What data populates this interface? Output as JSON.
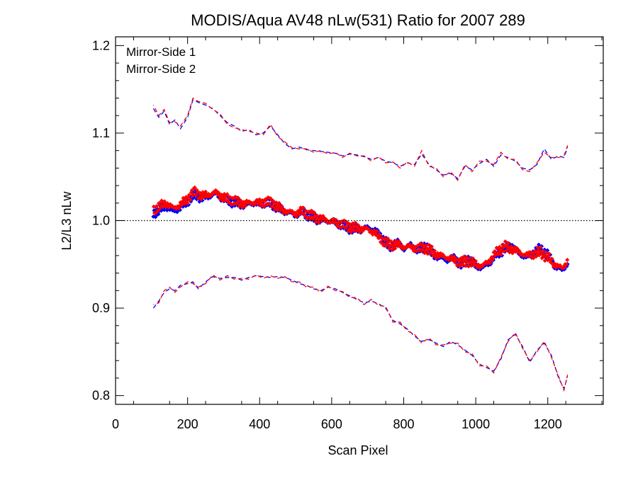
{
  "chart_data": {
    "type": "scatter",
    "title": "MODIS/Aqua AV48 nLw(531) Ratio for 2007 289",
    "xlabel": "Scan Pixel",
    "ylabel": "L2/L3 nLw",
    "xlim": [
      0,
      1354
    ],
    "ylim": [
      0.79,
      1.21
    ],
    "xticks": [
      0,
      200,
      400,
      600,
      800,
      1000,
      1200
    ],
    "xtick_labels": [
      "0",
      "200",
      "400",
      "600",
      "800",
      "1000",
      "1200"
    ],
    "yticks": [
      0.8,
      0.9,
      1.0,
      1.1,
      1.2
    ],
    "ytick_labels": [
      "0.8",
      "0.9",
      "1.0",
      "1.1",
      "1.2"
    ],
    "reference_line": {
      "y": 1.0,
      "style": "dotted"
    },
    "legend": {
      "placement": "top-left",
      "entries": [
        "Mirror-Side 1",
        "Mirror-Side 2"
      ]
    },
    "grid": false,
    "series": [
      {
        "name": "Mirror-Side 1",
        "color": "#0000ff",
        "mean": {
          "x": [
            105,
            120,
            140,
            160,
            180,
            200,
            220,
            240,
            260,
            280,
            300,
            320,
            340,
            360,
            380,
            400,
            420,
            440,
            460,
            480,
            500,
            520,
            540,
            560,
            580,
            600,
            620,
            640,
            660,
            680,
            700,
            720,
            740,
            760,
            780,
            800,
            820,
            840,
            860,
            880,
            900,
            920,
            940,
            960,
            980,
            1000,
            1020,
            1040,
            1060,
            1080,
            1100,
            1120,
            1140,
            1160,
            1180,
            1200,
            1220,
            1240,
            1255
          ],
          "y": [
            1.008,
            1.012,
            1.017,
            1.01,
            1.015,
            1.022,
            1.03,
            1.026,
            1.028,
            1.031,
            1.025,
            1.022,
            1.02,
            1.018,
            1.02,
            1.019,
            1.021,
            1.018,
            1.012,
            1.009,
            1.007,
            1.01,
            1.005,
            1.002,
            1.0,
            0.999,
            0.996,
            0.993,
            0.991,
            0.99,
            0.992,
            0.988,
            0.98,
            0.97,
            0.975,
            0.968,
            0.972,
            0.966,
            0.971,
            0.962,
            0.958,
            0.955,
            0.957,
            0.95,
            0.956,
            0.948,
            0.946,
            0.953,
            0.963,
            0.968,
            0.971,
            0.962,
            0.958,
            0.963,
            0.967,
            0.961,
            0.948,
            0.943,
            0.952
          ]
        },
        "upper": {
          "x": [
            105,
            120,
            135,
            150,
            165,
            180,
            200,
            215,
            230,
            250,
            270,
            290,
            310,
            330,
            350,
            370,
            390,
            410,
            430,
            450,
            470,
            490,
            510,
            530,
            550,
            570,
            590,
            610,
            630,
            650,
            670,
            690,
            710,
            730,
            750,
            770,
            790,
            810,
            830,
            850,
            870,
            890,
            910,
            930,
            950,
            970,
            990,
            1010,
            1030,
            1050,
            1070,
            1090,
            1110,
            1130,
            1150,
            1170,
            1190,
            1210,
            1230,
            1245,
            1255
          ],
          "y": [
            1.128,
            1.118,
            1.125,
            1.11,
            1.115,
            1.105,
            1.118,
            1.138,
            1.135,
            1.132,
            1.128,
            1.12,
            1.112,
            1.108,
            1.102,
            1.104,
            1.098,
            1.1,
            1.108,
            1.098,
            1.088,
            1.082,
            1.084,
            1.081,
            1.08,
            1.079,
            1.078,
            1.077,
            1.074,
            1.076,
            1.075,
            1.073,
            1.07,
            1.072,
            1.068,
            1.066,
            1.062,
            1.066,
            1.064,
            1.076,
            1.064,
            1.058,
            1.052,
            1.054,
            1.048,
            1.062,
            1.058,
            1.065,
            1.07,
            1.062,
            1.075,
            1.072,
            1.068,
            1.06,
            1.058,
            1.064,
            1.082,
            1.07,
            1.074,
            1.072,
            1.084
          ]
        },
        "lower": {
          "x": [
            105,
            120,
            135,
            150,
            165,
            180,
            200,
            215,
            230,
            250,
            270,
            290,
            310,
            330,
            350,
            370,
            390,
            410,
            430,
            450,
            470,
            490,
            510,
            530,
            550,
            570,
            590,
            610,
            630,
            650,
            670,
            690,
            710,
            730,
            750,
            770,
            790,
            810,
            830,
            850,
            870,
            890,
            910,
            930,
            950,
            970,
            990,
            1010,
            1030,
            1050,
            1070,
            1090,
            1110,
            1130,
            1150,
            1170,
            1190,
            1210,
            1230,
            1245,
            1255
          ],
          "y": [
            0.9,
            0.908,
            0.918,
            0.922,
            0.92,
            0.926,
            0.928,
            0.93,
            0.922,
            0.93,
            0.936,
            0.934,
            0.935,
            0.935,
            0.932,
            0.935,
            0.937,
            0.936,
            0.935,
            0.936,
            0.935,
            0.932,
            0.928,
            0.926,
            0.922,
            0.92,
            0.924,
            0.922,
            0.918,
            0.914,
            0.91,
            0.906,
            0.908,
            0.905,
            0.9,
            0.886,
            0.882,
            0.876,
            0.868,
            0.862,
            0.864,
            0.86,
            0.856,
            0.862,
            0.858,
            0.852,
            0.846,
            0.836,
            0.832,
            0.828,
            0.842,
            0.864,
            0.87,
            0.856,
            0.838,
            0.852,
            0.86,
            0.846,
            0.82,
            0.808,
            0.822
          ]
        }
      },
      {
        "name": "Mirror-Side 2",
        "color": "#ff0000",
        "mean": {
          "x": [
            105,
            120,
            140,
            160,
            180,
            200,
            220,
            240,
            260,
            280,
            300,
            320,
            340,
            360,
            380,
            400,
            420,
            440,
            460,
            480,
            500,
            520,
            540,
            560,
            580,
            600,
            620,
            640,
            660,
            680,
            700,
            720,
            740,
            760,
            780,
            800,
            820,
            840,
            860,
            880,
            900,
            920,
            940,
            960,
            980,
            1000,
            1020,
            1040,
            1060,
            1080,
            1100,
            1120,
            1140,
            1160,
            1180,
            1200,
            1220,
            1240,
            1255
          ],
          "y": [
            1.012,
            1.016,
            1.02,
            1.014,
            1.018,
            1.025,
            1.033,
            1.028,
            1.03,
            1.032,
            1.026,
            1.024,
            1.021,
            1.019,
            1.021,
            1.02,
            1.022,
            1.019,
            1.013,
            1.01,
            1.008,
            1.011,
            1.006,
            1.003,
            1.001,
            0.999,
            0.997,
            0.994,
            0.992,
            0.991,
            0.99,
            0.986,
            0.978,
            0.972,
            0.973,
            0.97,
            0.97,
            0.968,
            0.969,
            0.964,
            0.96,
            0.958,
            0.955,
            0.952,
            0.954,
            0.95,
            0.948,
            0.955,
            0.965,
            0.97,
            0.968,
            0.964,
            0.96,
            0.962,
            0.964,
            0.958,
            0.95,
            0.945,
            0.955
          ]
        },
        "upper": {
          "x": [
            105,
            120,
            135,
            150,
            165,
            180,
            200,
            215,
            230,
            250,
            270,
            290,
            310,
            330,
            350,
            370,
            390,
            410,
            430,
            450,
            470,
            490,
            510,
            530,
            550,
            570,
            590,
            610,
            630,
            650,
            670,
            690,
            710,
            730,
            750,
            770,
            790,
            810,
            830,
            850,
            870,
            890,
            910,
            930,
            950,
            970,
            990,
            1010,
            1030,
            1050,
            1070,
            1090,
            1110,
            1130,
            1150,
            1170,
            1190,
            1210,
            1230,
            1245,
            1255
          ],
          "y": [
            1.132,
            1.12,
            1.127,
            1.112,
            1.113,
            1.108,
            1.12,
            1.14,
            1.136,
            1.134,
            1.127,
            1.122,
            1.11,
            1.106,
            1.104,
            1.102,
            1.1,
            1.098,
            1.11,
            1.096,
            1.09,
            1.083,
            1.082,
            1.082,
            1.078,
            1.08,
            1.076,
            1.078,
            1.072,
            1.077,
            1.074,
            1.074,
            1.068,
            1.073,
            1.066,
            1.067,
            1.06,
            1.067,
            1.062,
            1.08,
            1.062,
            1.06,
            1.05,
            1.056,
            1.046,
            1.064,
            1.056,
            1.068,
            1.068,
            1.064,
            1.078,
            1.07,
            1.07,
            1.058,
            1.056,
            1.066,
            1.078,
            1.072,
            1.072,
            1.074,
            1.086
          ]
        },
        "lower": {
          "x": [
            105,
            120,
            135,
            150,
            165,
            180,
            200,
            215,
            230,
            250,
            270,
            290,
            310,
            330,
            350,
            370,
            390,
            410,
            430,
            450,
            470,
            490,
            510,
            530,
            550,
            570,
            590,
            610,
            630,
            650,
            670,
            690,
            710,
            730,
            750,
            770,
            790,
            810,
            830,
            850,
            870,
            890,
            910,
            930,
            950,
            970,
            990,
            1010,
            1030,
            1050,
            1070,
            1090,
            1110,
            1130,
            1150,
            1170,
            1190,
            1210,
            1230,
            1245,
            1255
          ],
          "y": [
            0.904,
            0.906,
            0.92,
            0.924,
            0.918,
            0.924,
            0.93,
            0.928,
            0.924,
            0.928,
            0.938,
            0.932,
            0.937,
            0.933,
            0.934,
            0.933,
            0.938,
            0.934,
            0.937,
            0.934,
            0.936,
            0.93,
            0.93,
            0.924,
            0.924,
            0.918,
            0.925,
            0.92,
            0.919,
            0.912,
            0.912,
            0.904,
            0.91,
            0.903,
            0.902,
            0.884,
            0.884,
            0.874,
            0.87,
            0.86,
            0.866,
            0.858,
            0.858,
            0.86,
            0.86,
            0.85,
            0.848,
            0.834,
            0.834,
            0.826,
            0.844,
            0.862,
            0.872,
            0.854,
            0.84,
            0.85,
            0.862,
            0.844,
            0.822,
            0.806,
            0.824
          ]
        }
      }
    ]
  }
}
